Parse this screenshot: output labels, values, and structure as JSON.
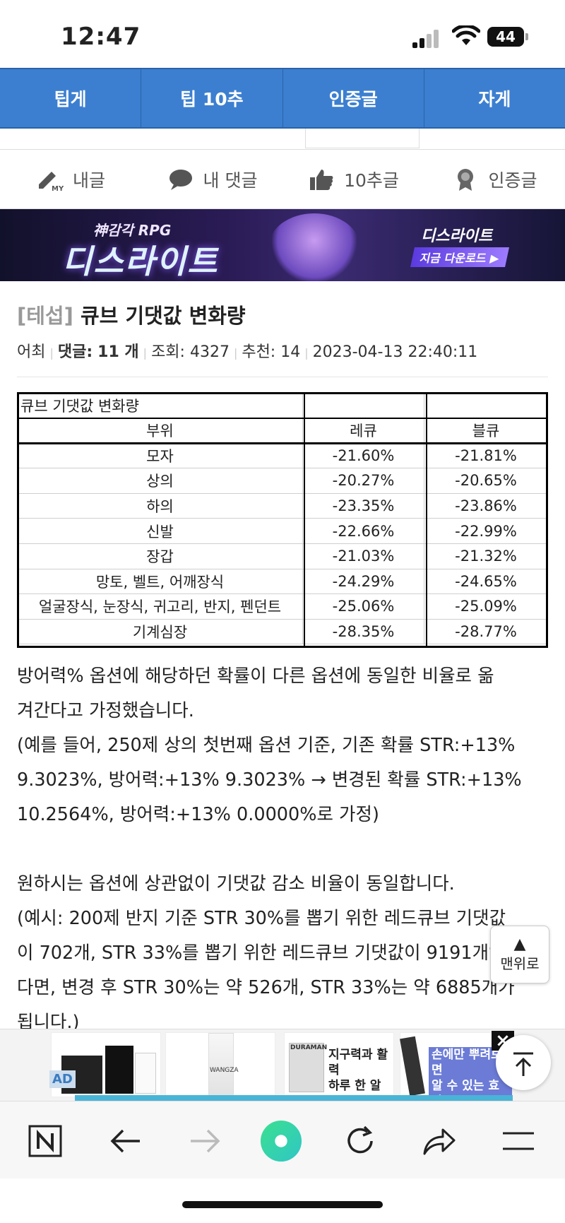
{
  "status": {
    "time": "12:47",
    "battery": "44"
  },
  "tabs": [
    "팁게",
    "팁 10추",
    "인증글",
    "자게"
  ],
  "user_menu": [
    {
      "label": "내글",
      "icon": "pen-my-icon"
    },
    {
      "label": "내 댓글",
      "icon": "speech-bubble-icon"
    },
    {
      "label": "10추글",
      "icon": "thumbs-up-icon"
    },
    {
      "label": "인증글",
      "icon": "badge-icon"
    }
  ],
  "banner": {
    "small": "神감각 RPG",
    "big": "디스라이트",
    "logo": "디스라이트",
    "download": "지금 다운로드 ▶"
  },
  "article": {
    "category": "[테섭]",
    "title": "큐브 기댓값 변화량",
    "author": "어최",
    "comments_label": "댓글:",
    "comments_value": "11 개",
    "views": "조회: 4327",
    "recommend": "추천: 14",
    "date": "2023-04-13 22:40:11"
  },
  "table": {
    "title": "큐브 기댓값 변화량",
    "headers": [
      "부위",
      "레큐",
      "블큐"
    ],
    "rows": [
      [
        "모자",
        "-21.60%",
        "-21.81%"
      ],
      [
        "상의",
        "-20.27%",
        "-20.65%"
      ],
      [
        "하의",
        "-23.35%",
        "-23.86%"
      ],
      [
        "신발",
        "-22.66%",
        "-22.99%"
      ],
      [
        "장갑",
        "-21.03%",
        "-21.32%"
      ],
      [
        "망토, 벨트, 어깨장식",
        "-24.29%",
        "-24.65%"
      ],
      [
        "얼굴장식, 눈장식, 귀고리, 반지, 펜던트",
        "-25.06%",
        "-25.09%"
      ],
      [
        "기계심장",
        "-28.35%",
        "-28.77%"
      ]
    ]
  },
  "body_lines": [
    "방어력% 옵션에 해당하던 확률이 다른 옵션에 동일한 비율로 옮",
    "겨간다고 가정했습니다.",
    "(예를 들어, 250제 상의 첫번째 옵션 기준, 기존 확률 STR:+13%",
    "9.3023%, 방어력:+13% 9.3023% → 변경된 확률 STR:+13%",
    "10.2564%, 방어력:+13% 0.0000%로 가정)",
    "",
    "원하시는 옵션에 상관없이 기댓값 감소 비율이 동일합니다.",
    "(예시: 200제 반지 기준 STR 30%를 뽑기 위한 레드큐브 기댓값",
    "이 702개, STR 33%를 뽑기 위한 레드큐브 기댓값이 9191개였",
    "다면, 변경 후 STR 30%는 약 526개, STR 33%는 약 6885개가",
    "됩니다.)"
  ],
  "to_top_label": "맨위로",
  "ad": {
    "tag": "AD",
    "brand": "DURAMAN",
    "tile2_brand": "WANGZA",
    "copy1_l1": "지구력과 활력",
    "copy1_l2": "하루 한 알로!",
    "copy2_l1": "손에만 뿌려보면",
    "copy2_l2": "알 수 있는 효과"
  },
  "colors": {
    "tab_blue": "#3c7fd0",
    "banner_bg": "#1f1a45"
  }
}
